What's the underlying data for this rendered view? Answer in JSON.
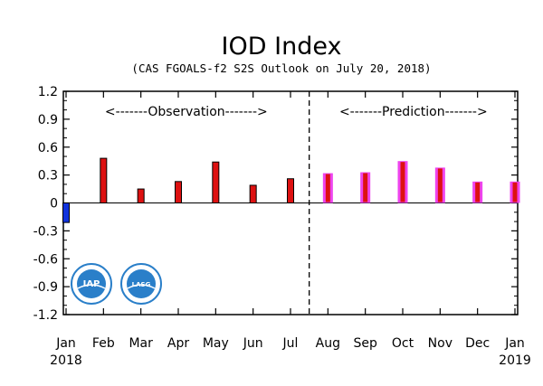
{
  "chart_data": {
    "type": "bar",
    "title": "IOD Index",
    "subtitle": "(CAS FGOALS-f2 S2S Outlook on July 20, 2018)",
    "xlabel": "",
    "ylabel": "",
    "ylim": [
      -1.2,
      1.2
    ],
    "yticks": [
      "1.2",
      "0.9",
      "0.6",
      "0.3",
      "0",
      "-0.3",
      "-0.6",
      "-0.9",
      "-1.2"
    ],
    "categories": [
      "Jan",
      "Feb",
      "Mar",
      "Apr",
      "May",
      "Jun",
      "Jul",
      "Aug",
      "Sep",
      "Oct",
      "Nov",
      "Dec",
      "Jan"
    ],
    "year_labels": {
      "start": "2018",
      "end": "2019"
    },
    "series": [
      {
        "values": [
          -0.21,
          0.48,
          0.15,
          0.23,
          0.44,
          0.19,
          0.26,
          0.32,
          0.33,
          0.45,
          0.38,
          0.23,
          0.23
        ]
      }
    ],
    "region_labels": {
      "observation": "<-------Observation------->",
      "prediction": "<-------Prediction------->"
    },
    "divider_after_index": 6,
    "grid": false,
    "colors": {
      "observation_positive": "#dd1111",
      "observation_negative": "#1133dd",
      "prediction_fill": "#dd1111",
      "prediction_edge": "#ee44ee",
      "outline": "#000000"
    },
    "logos": [
      {
        "name": "iap-logo",
        "text": "IAP",
        "color": "#2a7fc9"
      },
      {
        "name": "lasg-logo",
        "text": "LASG",
        "color": "#2a7fc9"
      }
    ]
  }
}
